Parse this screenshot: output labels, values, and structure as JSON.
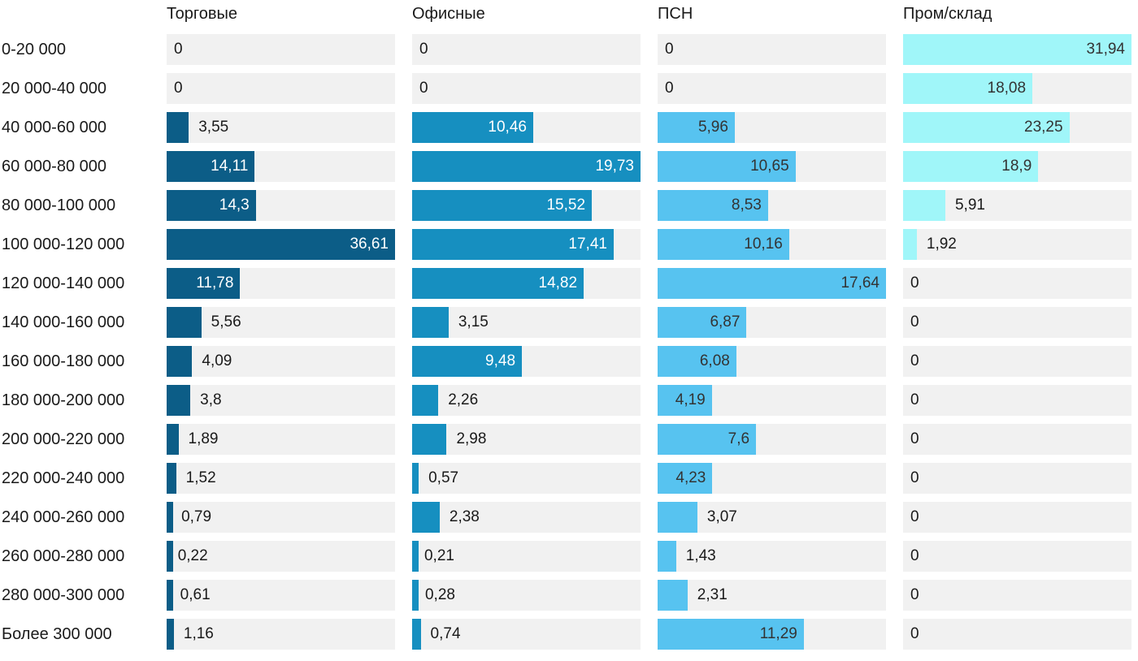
{
  "chart_data": {
    "type": "bar",
    "orientation": "horizontal",
    "grid": false,
    "legend_position": "column-headers-top",
    "track_color": "#f1f1f1",
    "label_text_color": "#1a1a1a",
    "categories": [
      "0-20 000",
      "20 000-40 000",
      "40 000-60 000",
      "60 000-80 000",
      "80 000-100 000",
      "100 000-120 000",
      "120 000-140 000",
      "140 000-160 000",
      "160 000-180 000",
      "180 000-200 000",
      "200 000-220 000",
      "220 000-240 000",
      "240 000-260 000",
      "260 000-280 000",
      "280 000-300 000",
      "Более 300 000"
    ],
    "series": [
      {
        "name": "Торговые",
        "color": "#0c5d87",
        "inside_text_color": "#ffffff",
        "xlim": [
          0,
          36.61
        ],
        "values": [
          0,
          0,
          3.55,
          14.11,
          14.3,
          36.61,
          11.78,
          5.56,
          4.09,
          3.8,
          1.89,
          1.52,
          0.79,
          0.22,
          0.61,
          1.16
        ],
        "display": [
          "0",
          "0",
          "3,55",
          "14,11",
          "14,3",
          "36,61",
          "11,78",
          "5,56",
          "4,09",
          "3,8",
          "1,89",
          "1,52",
          "0,79",
          "0,22",
          "0,61",
          "1,16"
        ]
      },
      {
        "name": "Офисные",
        "color": "#168fc0",
        "inside_text_color": "#ffffff",
        "xlim": [
          0,
          19.73
        ],
        "values": [
          0,
          0,
          10.46,
          19.73,
          15.52,
          17.41,
          14.82,
          3.15,
          9.48,
          2.26,
          2.98,
          0.57,
          2.38,
          0.21,
          0.28,
          0.74
        ],
        "display": [
          "0",
          "0",
          "10,46",
          "19,73",
          "15,52",
          "17,41",
          "14,82",
          "3,15",
          "9,48",
          "2,26",
          "2,98",
          "0,57",
          "2,38",
          "0,21",
          "0,28",
          "0,74"
        ]
      },
      {
        "name": "ПСН",
        "color": "#57c3f0",
        "inside_text_color": "#333333",
        "xlim": [
          0,
          17.64
        ],
        "values": [
          0,
          0,
          5.96,
          10.65,
          8.53,
          10.16,
          17.64,
          6.87,
          6.08,
          4.19,
          7.6,
          4.23,
          3.07,
          1.43,
          2.31,
          11.29
        ],
        "display": [
          "0",
          "0",
          "5,96",
          "10,65",
          "8,53",
          "10,16",
          "17,64",
          "6,87",
          "6,08",
          "4,19",
          "7,6",
          "4,23",
          "3,07",
          "1,43",
          "2,31",
          "11,29"
        ]
      },
      {
        "name": "Пром/склад",
        "color": "#a0f6f9",
        "inside_text_color": "#333333",
        "xlim": [
          0,
          31.94
        ],
        "values": [
          31.94,
          18.08,
          23.25,
          18.9,
          5.91,
          1.92,
          0,
          0,
          0,
          0,
          0,
          0,
          0,
          0,
          0,
          0
        ],
        "display": [
          "31,94",
          "18,08",
          "23,25",
          "18,9",
          "5,91",
          "1,92",
          "0",
          "0",
          "0",
          "0",
          "0",
          "0",
          "0",
          "0",
          "0",
          "0"
        ]
      }
    ]
  }
}
